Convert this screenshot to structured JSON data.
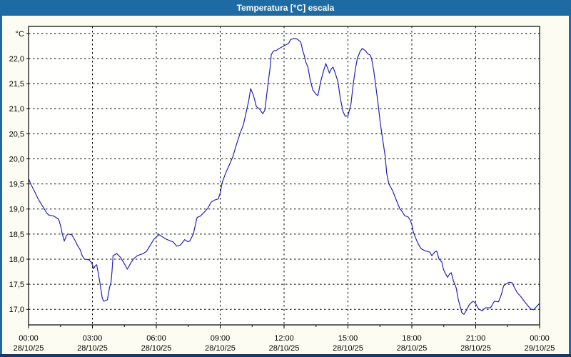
{
  "window": {
    "title": "Temperatura [°C] escala"
  },
  "colors": {
    "titlebar_bg": "#1e6ba3",
    "titlebar_text": "#ffffff",
    "frame_bottom": "#1a3a63",
    "window_bg": "#fcfcf2",
    "plot_bg": "#fffffe",
    "line": "#2222b8",
    "grid": "#000000",
    "axis": "#000000",
    "text": "#000000"
  },
  "chart_data": {
    "type": "line",
    "title": "Temperatura [°C] escala",
    "unit_label": "°C",
    "ylabel": "Temperatura [°C]",
    "xlabel": "",
    "grid": "dashed",
    "legend": "none",
    "ylim": [
      16.69,
      22.64
    ],
    "xlim_hours": [
      0,
      24
    ],
    "y_ticks": [
      {
        "value": 17.0,
        "label": "17,0"
      },
      {
        "value": 17.5,
        "label": "17,5"
      },
      {
        "value": 18.0,
        "label": "18,0"
      },
      {
        "value": 18.5,
        "label": "18,5"
      },
      {
        "value": 19.0,
        "label": "19,0"
      },
      {
        "value": 19.5,
        "label": "19,5"
      },
      {
        "value": 20.0,
        "label": "20,0"
      },
      {
        "value": 20.5,
        "label": "20,5"
      },
      {
        "value": 21.0,
        "label": "21,0"
      },
      {
        "value": 21.5,
        "label": "21,5"
      },
      {
        "value": 22.0,
        "label": "22,0"
      },
      {
        "value": 22.5,
        "label": ""
      }
    ],
    "x_ticks": [
      {
        "hours": 0,
        "time": "00:00",
        "date": "28/10/25"
      },
      {
        "hours": 3,
        "time": "03:00",
        "date": "28/10/25"
      },
      {
        "hours": 6,
        "time": "06:00",
        "date": "28/10/25"
      },
      {
        "hours": 9,
        "time": "09:00",
        "date": "28/10/25"
      },
      {
        "hours": 12,
        "time": "12:00",
        "date": "28/10/25"
      },
      {
        "hours": 15,
        "time": "15:00",
        "date": "28/10/25"
      },
      {
        "hours": 18,
        "time": "18:00",
        "date": "28/10/25"
      },
      {
        "hours": 21,
        "time": "21:00",
        "date": "28/10/25"
      },
      {
        "hours": 24,
        "time": "00:00",
        "date": "29/10/25"
      }
    ],
    "minor_tick_step_hours": 1.5,
    "series": [
      {
        "name": "Temperatura",
        "points": [
          [
            0.0,
            19.61
          ],
          [
            0.1,
            19.5
          ],
          [
            0.27,
            19.36
          ],
          [
            0.44,
            19.21
          ],
          [
            0.61,
            19.09
          ],
          [
            0.74,
            19.0
          ],
          [
            0.84,
            18.93
          ],
          [
            0.94,
            18.88
          ],
          [
            1.18,
            18.86
          ],
          [
            1.41,
            18.8
          ],
          [
            1.51,
            18.66
          ],
          [
            1.58,
            18.51
          ],
          [
            1.68,
            18.36
          ],
          [
            1.78,
            18.47
          ],
          [
            1.85,
            18.5
          ],
          [
            2.02,
            18.49
          ],
          [
            2.19,
            18.37
          ],
          [
            2.29,
            18.28
          ],
          [
            2.42,
            18.19
          ],
          [
            2.52,
            18.07
          ],
          [
            2.62,
            18.0
          ],
          [
            2.83,
            17.99
          ],
          [
            2.96,
            17.93
          ],
          [
            3.06,
            17.81
          ],
          [
            3.13,
            17.87
          ],
          [
            3.2,
            17.89
          ],
          [
            3.3,
            17.66
          ],
          [
            3.36,
            17.51
          ],
          [
            3.46,
            17.23
          ],
          [
            3.53,
            17.16
          ],
          [
            3.7,
            17.19
          ],
          [
            3.8,
            17.43
          ],
          [
            3.87,
            17.54
          ],
          [
            3.92,
            17.75
          ],
          [
            3.97,
            18.07
          ],
          [
            4.14,
            18.11
          ],
          [
            4.31,
            18.04
          ],
          [
            4.47,
            17.93
          ],
          [
            4.64,
            17.8
          ],
          [
            4.81,
            17.93
          ],
          [
            4.94,
            18.01
          ],
          [
            5.11,
            18.07
          ],
          [
            5.38,
            18.11
          ],
          [
            5.55,
            18.16
          ],
          [
            5.72,
            18.28
          ],
          [
            5.89,
            18.4
          ],
          [
            6.12,
            18.49
          ],
          [
            6.46,
            18.4
          ],
          [
            6.8,
            18.34
          ],
          [
            6.96,
            18.26
          ],
          [
            7.13,
            18.28
          ],
          [
            7.33,
            18.39
          ],
          [
            7.47,
            18.35
          ],
          [
            7.57,
            18.36
          ],
          [
            7.74,
            18.5
          ],
          [
            7.91,
            18.83
          ],
          [
            8.07,
            18.86
          ],
          [
            8.24,
            18.93
          ],
          [
            8.41,
            19.01
          ],
          [
            8.58,
            19.14
          ],
          [
            8.75,
            19.18
          ],
          [
            8.91,
            19.2
          ],
          [
            9.01,
            19.33
          ],
          [
            9.08,
            19.51
          ],
          [
            9.25,
            19.71
          ],
          [
            9.42,
            19.87
          ],
          [
            9.59,
            20.04
          ],
          [
            9.76,
            20.28
          ],
          [
            9.92,
            20.49
          ],
          [
            10.09,
            20.68
          ],
          [
            10.19,
            20.87
          ],
          [
            10.33,
            21.14
          ],
          [
            10.43,
            21.4
          ],
          [
            10.53,
            21.3
          ],
          [
            10.6,
            21.21
          ],
          [
            10.7,
            21.04
          ],
          [
            10.83,
            21.0
          ],
          [
            11.0,
            20.9
          ],
          [
            11.1,
            20.97
          ],
          [
            11.2,
            21.33
          ],
          [
            11.27,
            21.57
          ],
          [
            11.34,
            21.8
          ],
          [
            11.4,
            22.08
          ],
          [
            11.5,
            22.15
          ],
          [
            11.63,
            22.16
          ],
          [
            11.77,
            22.2
          ],
          [
            11.94,
            22.24
          ],
          [
            12.07,
            22.27
          ],
          [
            12.21,
            22.3
          ],
          [
            12.31,
            22.38
          ],
          [
            12.45,
            22.4
          ],
          [
            12.61,
            22.39
          ],
          [
            12.78,
            22.33
          ],
          [
            12.88,
            22.15
          ],
          [
            12.95,
            22.06
          ],
          [
            13.02,
            21.93
          ],
          [
            13.12,
            21.83
          ],
          [
            13.22,
            21.59
          ],
          [
            13.35,
            21.37
          ],
          [
            13.52,
            21.28
          ],
          [
            13.59,
            21.26
          ],
          [
            13.72,
            21.54
          ],
          [
            13.86,
            21.76
          ],
          [
            13.96,
            21.9
          ],
          [
            14.06,
            21.79
          ],
          [
            14.13,
            21.71
          ],
          [
            14.23,
            21.8
          ],
          [
            14.3,
            21.83
          ],
          [
            14.4,
            21.71
          ],
          [
            14.53,
            21.54
          ],
          [
            14.63,
            21.23
          ],
          [
            14.7,
            21.09
          ],
          [
            14.77,
            20.94
          ],
          [
            14.87,
            20.85
          ],
          [
            15.0,
            20.86
          ],
          [
            15.14,
            21.09
          ],
          [
            15.24,
            21.47
          ],
          [
            15.34,
            21.76
          ],
          [
            15.44,
            22.0
          ],
          [
            15.57,
            22.14
          ],
          [
            15.67,
            22.2
          ],
          [
            15.81,
            22.16
          ],
          [
            15.94,
            22.09
          ],
          [
            16.04,
            22.07
          ],
          [
            16.11,
            22.0
          ],
          [
            16.21,
            21.76
          ],
          [
            16.31,
            21.44
          ],
          [
            16.41,
            21.11
          ],
          [
            16.51,
            20.75
          ],
          [
            16.61,
            20.45
          ],
          [
            16.75,
            20.05
          ],
          [
            16.82,
            19.71
          ],
          [
            16.92,
            19.5
          ],
          [
            17.09,
            19.37
          ],
          [
            17.26,
            19.19
          ],
          [
            17.43,
            19.01
          ],
          [
            17.56,
            18.94
          ],
          [
            17.66,
            18.87
          ],
          [
            17.83,
            18.84
          ],
          [
            17.9,
            18.8
          ],
          [
            18.0,
            18.69
          ],
          [
            18.07,
            18.54
          ],
          [
            18.17,
            18.43
          ],
          [
            18.27,
            18.33
          ],
          [
            18.4,
            18.23
          ],
          [
            18.5,
            18.19
          ],
          [
            18.67,
            18.16
          ],
          [
            18.84,
            18.14
          ],
          [
            18.94,
            18.07
          ],
          [
            19.07,
            18.14
          ],
          [
            19.17,
            18.16
          ],
          [
            19.27,
            18.01
          ],
          [
            19.41,
            17.94
          ],
          [
            19.48,
            17.8
          ],
          [
            19.58,
            17.71
          ],
          [
            19.68,
            17.64
          ],
          [
            19.78,
            17.71
          ],
          [
            19.85,
            17.73
          ],
          [
            19.95,
            17.57
          ],
          [
            20.08,
            17.43
          ],
          [
            20.18,
            17.2
          ],
          [
            20.35,
            16.93
          ],
          [
            20.45,
            16.9
          ],
          [
            20.59,
            17.0
          ],
          [
            20.69,
            17.09
          ],
          [
            20.86,
            17.16
          ],
          [
            20.96,
            17.14
          ],
          [
            21.13,
            17.01
          ],
          [
            21.3,
            16.97
          ],
          [
            21.46,
            17.03
          ],
          [
            21.7,
            17.03
          ],
          [
            21.87,
            17.16
          ],
          [
            22.07,
            17.15
          ],
          [
            22.21,
            17.3
          ],
          [
            22.31,
            17.47
          ],
          [
            22.44,
            17.51
          ],
          [
            22.58,
            17.54
          ],
          [
            22.71,
            17.53
          ],
          [
            22.81,
            17.44
          ],
          [
            22.95,
            17.33
          ],
          [
            23.11,
            17.26
          ],
          [
            23.32,
            17.14
          ],
          [
            23.45,
            17.07
          ],
          [
            23.58,
            17.01
          ],
          [
            23.72,
            16.99
          ],
          [
            23.89,
            17.07
          ],
          [
            24.0,
            17.12
          ]
        ]
      }
    ]
  }
}
